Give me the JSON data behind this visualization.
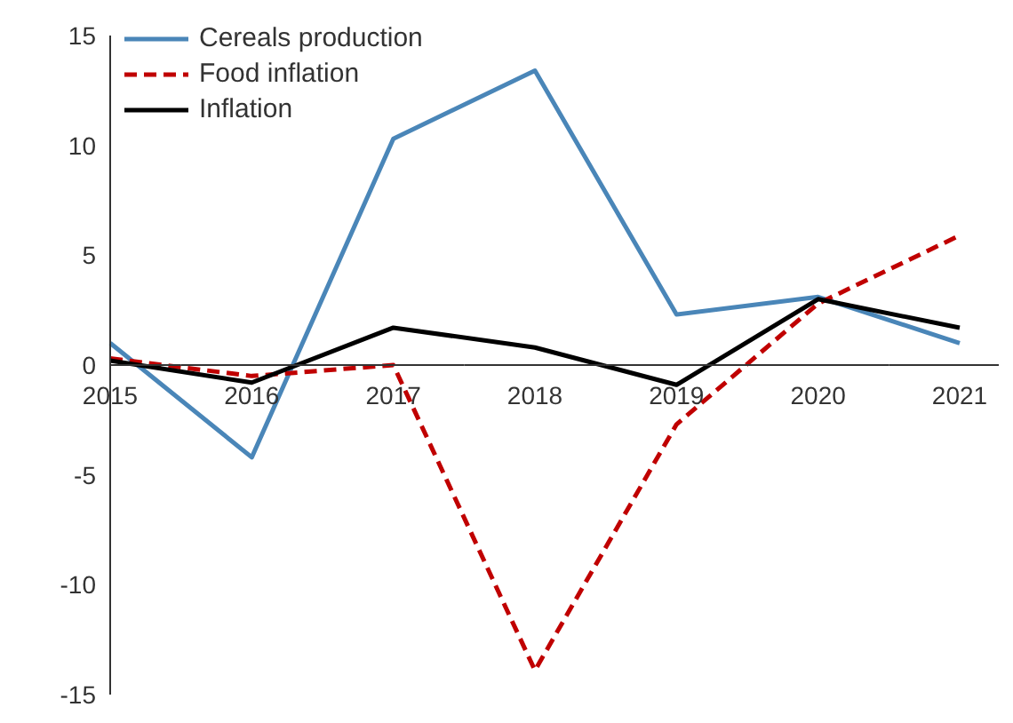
{
  "chart_data": {
    "type": "line",
    "categories": [
      "2015",
      "2016",
      "2017",
      "2018",
      "2019",
      "2020",
      "2021"
    ],
    "series": [
      {
        "name": "Cereals production",
        "color": "#4a86b8",
        "line_style": "solid",
        "values": [
          1.0,
          -4.2,
          10.3,
          13.4,
          2.3,
          3.1,
          1.0
        ]
      },
      {
        "name": "Food inflation",
        "color": "#c00000",
        "line_style": "dashed",
        "values": [
          0.3,
          -0.5,
          0.0,
          -13.9,
          -2.7,
          2.8,
          5.9
        ]
      },
      {
        "name": "Inflation",
        "color": "#000000",
        "line_style": "solid",
        "values": [
          0.2,
          -0.8,
          1.7,
          0.8,
          -0.9,
          3.0,
          1.7
        ]
      }
    ],
    "ylim": [
      -15,
      15
    ],
    "yticks": [
      -15,
      -10,
      -5,
      0,
      5,
      10,
      15
    ],
    "grid": false,
    "legend": "top left",
    "marker": "none"
  }
}
